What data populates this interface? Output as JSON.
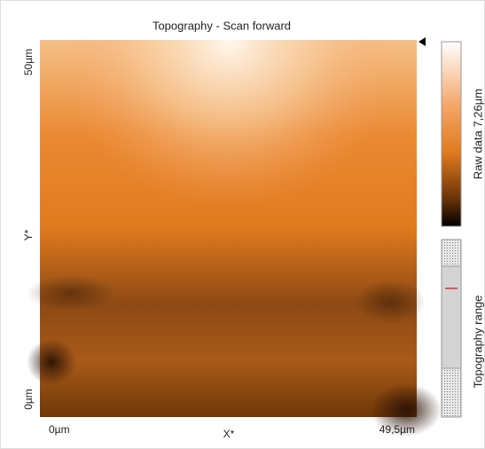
{
  "window": {
    "title": "Topography - Scan forward"
  },
  "image": {
    "y_axis": {
      "label": "Y*",
      "top_label": "50µm",
      "bottom_label": "0µm"
    },
    "x_axis": {
      "label": "X*",
      "left_label": "0µm",
      "right_label": "49,5µm"
    }
  },
  "colorbar": {
    "label": "Raw data 7,26µm"
  },
  "range_bar": {
    "label": "Topography range"
  }
}
